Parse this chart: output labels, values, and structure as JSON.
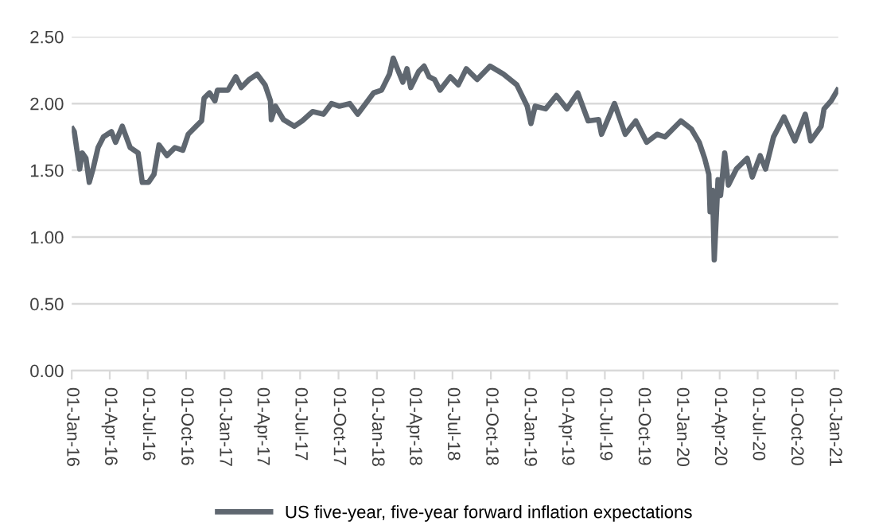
{
  "chart_data": {
    "type": "line",
    "ylim": [
      0,
      2.5
    ],
    "yticks": [
      {
        "value": 0,
        "label": "0.00"
      },
      {
        "value": 0.5,
        "label": "0.50"
      },
      {
        "value": 1,
        "label": "1.00"
      },
      {
        "value": 1.5,
        "label": "1.50"
      },
      {
        "value": 2,
        "label": "2.00"
      },
      {
        "value": 2.5,
        "label": "2.50"
      }
    ],
    "xlim": [
      "2016-01-01",
      "2021-01-10"
    ],
    "xticks": [
      {
        "value": "2016-01-01",
        "label": "01-Jan-16"
      },
      {
        "value": "2016-04-01",
        "label": "01-Apr-16"
      },
      {
        "value": "2016-07-01",
        "label": "01-Jul-16"
      },
      {
        "value": "2016-10-01",
        "label": "01-Oct-16"
      },
      {
        "value": "2017-01-01",
        "label": "01-Jan-17"
      },
      {
        "value": "2017-04-01",
        "label": "01-Apr-17"
      },
      {
        "value": "2017-07-01",
        "label": "01-Jul-17"
      },
      {
        "value": "2017-10-01",
        "label": "01-Oct-17"
      },
      {
        "value": "2018-01-01",
        "label": "01-Jan-18"
      },
      {
        "value": "2018-04-01",
        "label": "01-Apr-18"
      },
      {
        "value": "2018-07-01",
        "label": "01-Jul-18"
      },
      {
        "value": "2018-10-01",
        "label": "01-Oct-18"
      },
      {
        "value": "2019-01-01",
        "label": "01-Jan-19"
      },
      {
        "value": "2019-04-01",
        "label": "01-Apr-19"
      },
      {
        "value": "2019-07-01",
        "label": "01-Jul-19"
      },
      {
        "value": "2019-10-01",
        "label": "01-Oct-19"
      },
      {
        "value": "2020-01-01",
        "label": "01-Jan-20"
      },
      {
        "value": "2020-04-01",
        "label": "01-Apr-20"
      },
      {
        "value": "2020-07-01",
        "label": "01-Jul-20"
      },
      {
        "value": "2020-10-01",
        "label": "01-Oct-20"
      },
      {
        "value": "2021-01-01",
        "label": "01-Jan-21"
      }
    ],
    "grid": "y",
    "legend": "bottom",
    "line_style": "solid",
    "marker": "none",
    "series": [
      {
        "name": "US five-year, five-year forward inflation expectations",
        "color": "#5f6770",
        "x": [
          "2016-01-03",
          "2016-01-07",
          "2016-01-20",
          "2016-01-26",
          "2016-02-04",
          "2016-02-12",
          "2016-02-21",
          "2016-03-04",
          "2016-03-17",
          "2016-04-05",
          "2016-04-15",
          "2016-05-01",
          "2016-05-20",
          "2016-06-08",
          "2016-06-18",
          "2016-07-03",
          "2016-07-16",
          "2016-07-28",
          "2016-08-16",
          "2016-09-04",
          "2016-09-23",
          "2016-10-06",
          "2016-10-25",
          "2016-11-07",
          "2016-11-13",
          "2016-11-26",
          "2016-12-09",
          "2016-12-15",
          "2017-01-09",
          "2017-01-28",
          "2017-02-10",
          "2017-03-01",
          "2017-03-20",
          "2017-04-08",
          "2017-04-21",
          "2017-04-23",
          "2017-05-03",
          "2017-05-22",
          "2017-06-17",
          "2017-07-06",
          "2017-07-31",
          "2017-08-26",
          "2017-09-14",
          "2017-10-03",
          "2017-10-28",
          "2017-11-16",
          "2017-12-05",
          "2017-12-24",
          "2018-01-12",
          "2018-01-31",
          "2018-02-09",
          "2018-02-19",
          "2018-03-04",
          "2018-03-14",
          "2018-03-23",
          "2018-04-11",
          "2018-04-24",
          "2018-05-06",
          "2018-05-19",
          "2018-06-01",
          "2018-06-26",
          "2018-07-15",
          "2018-08-03",
          "2018-08-29",
          "2018-09-29",
          "2018-10-31",
          "2018-12-02",
          "2018-12-27",
          "2019-01-05",
          "2019-01-15",
          "2019-02-09",
          "2019-03-07",
          "2019-04-01",
          "2019-04-27",
          "2019-05-22",
          "2019-06-16",
          "2019-06-23",
          "2019-07-24",
          "2019-08-19",
          "2019-09-13",
          "2019-10-09",
          "2019-11-03",
          "2019-11-22",
          "2019-12-30",
          "2020-01-24",
          "2020-02-12",
          "2020-02-25",
          "2020-03-06",
          "2020-03-09",
          "2020-03-15",
          "2020-03-19",
          "2020-03-28",
          "2020-04-03",
          "2020-04-13",
          "2020-04-22",
          "2020-05-11",
          "2020-06-06",
          "2020-06-18",
          "2020-07-07",
          "2020-07-20",
          "2020-08-08",
          "2020-09-02",
          "2020-09-28",
          "2020-10-23",
          "2020-11-05",
          "2020-11-30",
          "2020-12-07",
          "2020-12-24",
          "2021-01-08"
        ],
        "values": [
          1.81,
          1.79,
          1.51,
          1.63,
          1.59,
          1.41,
          1.51,
          1.67,
          1.75,
          1.79,
          1.71,
          1.83,
          1.67,
          1.63,
          1.41,
          1.41,
          1.47,
          1.69,
          1.61,
          1.67,
          1.65,
          1.77,
          1.83,
          1.87,
          2.04,
          2.08,
          2.02,
          2.1,
          2.1,
          2.2,
          2.12,
          2.18,
          2.22,
          2.14,
          2.02,
          1.88,
          1.98,
          1.88,
          1.83,
          1.87,
          1.94,
          1.92,
          2.0,
          1.98,
          2.0,
          1.92,
          2.0,
          2.08,
          2.1,
          2.22,
          2.34,
          2.26,
          2.16,
          2.26,
          2.12,
          2.24,
          2.28,
          2.2,
          2.18,
          2.1,
          2.2,
          2.14,
          2.26,
          2.18,
          2.28,
          2.22,
          2.14,
          1.98,
          1.85,
          1.98,
          1.96,
          2.06,
          1.96,
          2.08,
          1.87,
          1.88,
          1.77,
          2.0,
          1.77,
          1.87,
          1.71,
          1.77,
          1.75,
          1.87,
          1.81,
          1.71,
          1.59,
          1.47,
          1.19,
          1.35,
          0.83,
          1.43,
          1.31,
          1.63,
          1.39,
          1.51,
          1.59,
          1.45,
          1.61,
          1.51,
          1.75,
          1.9,
          1.72,
          1.92,
          1.72,
          1.83,
          1.96,
          2.02,
          2.1
        ]
      }
    ]
  }
}
